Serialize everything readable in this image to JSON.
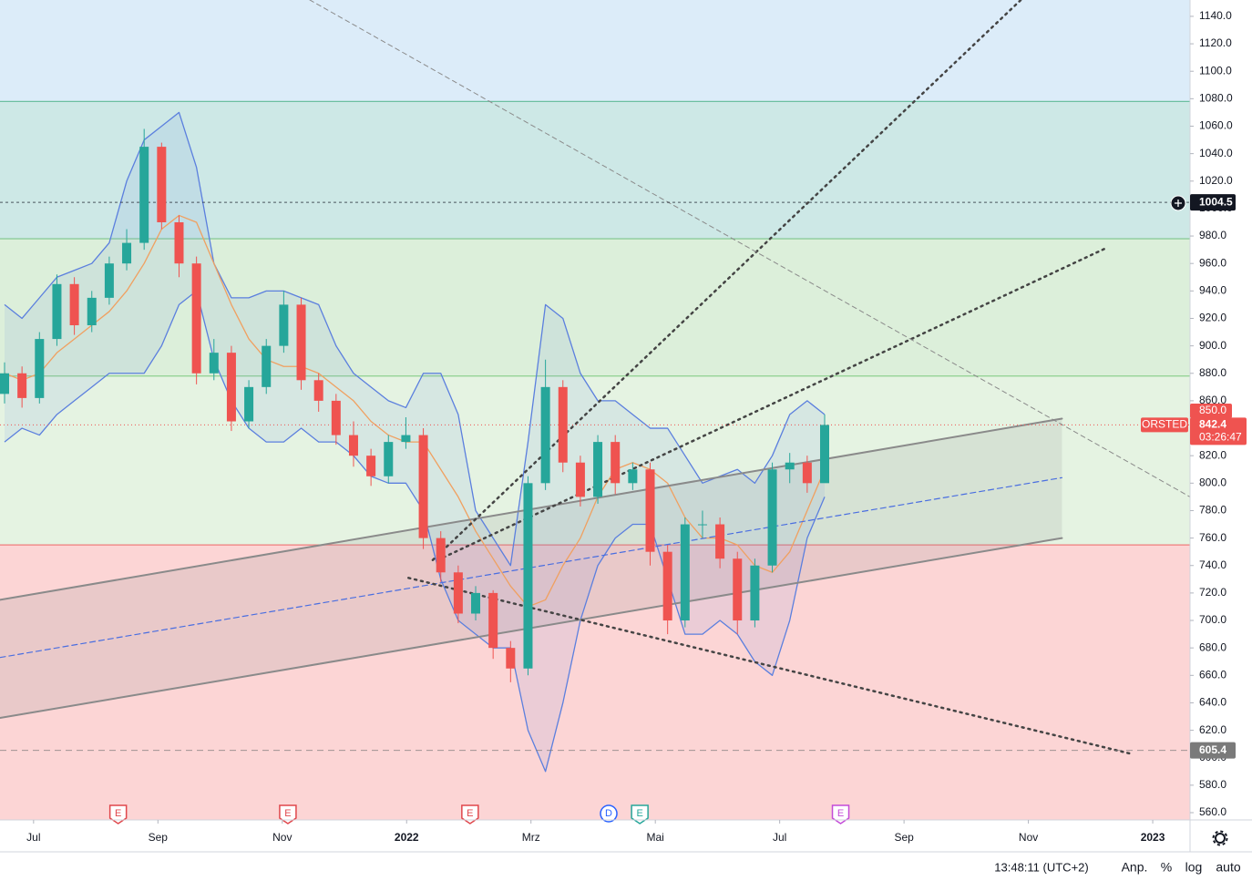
{
  "chart_data": {
    "type": "candlestick",
    "symbol": "ORSTED",
    "countdown": "03:26:47",
    "close_label": "842.4",
    "up_color": "#26a69a",
    "down_color": "#ef5350",
    "open": [
      865,
      880,
      862,
      905,
      945,
      915,
      935,
      960,
      975,
      1045,
      990,
      960,
      880,
      895,
      845,
      870,
      900,
      930,
      875,
      860,
      835,
      820,
      805,
      830,
      835,
      760,
      735,
      705,
      720,
      680,
      665,
      800,
      870,
      815,
      790,
      830,
      800,
      810,
      750,
      700,
      770,
      770,
      745,
      700,
      740,
      810,
      815,
      800
    ],
    "high": [
      888,
      885,
      910,
      952,
      950,
      940,
      965,
      985,
      1058,
      1048,
      995,
      965,
      905,
      900,
      875,
      905,
      940,
      935,
      880,
      865,
      845,
      825,
      835,
      848,
      840,
      765,
      740,
      725,
      722,
      685,
      805,
      890,
      875,
      820,
      835,
      835,
      815,
      815,
      755,
      775,
      780,
      775,
      750,
      745,
      815,
      822,
      820,
      850
    ],
    "low": [
      858,
      855,
      858,
      900,
      908,
      910,
      930,
      955,
      970,
      985,
      950,
      872,
      875,
      838,
      840,
      865,
      895,
      868,
      852,
      828,
      812,
      798,
      800,
      825,
      752,
      728,
      698,
      700,
      672,
      655,
      660,
      795,
      808,
      783,
      785,
      792,
      795,
      740,
      690,
      695,
      760,
      738,
      690,
      695,
      735,
      800,
      793,
      805
    ],
    "close": [
      880,
      862,
      905,
      945,
      915,
      935,
      960,
      975,
      1045,
      990,
      960,
      880,
      895,
      845,
      870,
      900,
      930,
      875,
      860,
      835,
      820,
      805,
      830,
      835,
      760,
      735,
      705,
      720,
      680,
      665,
      800,
      870,
      815,
      790,
      830,
      800,
      810,
      750,
      700,
      770,
      770,
      745,
      700,
      740,
      810,
      815,
      800,
      842.4
    ],
    "indicators": {
      "band_color": "#5b7fde",
      "basis_color": "#f0a060",
      "upper": [
        930,
        920,
        935,
        950,
        955,
        960,
        975,
        1020,
        1050,
        1060,
        1070,
        1030,
        960,
        935,
        935,
        940,
        940,
        935,
        930,
        900,
        880,
        870,
        860,
        855,
        880,
        880,
        850,
        780,
        760,
        740,
        830,
        930,
        920,
        880,
        860,
        860,
        850,
        840,
        840,
        820,
        800,
        805,
        810,
        800,
        820,
        850,
        860,
        850
      ],
      "basis": [
        880,
        875,
        880,
        895,
        905,
        915,
        925,
        940,
        960,
        985,
        995,
        990,
        960,
        930,
        905,
        890,
        885,
        885,
        880,
        870,
        860,
        845,
        835,
        830,
        830,
        810,
        790,
        765,
        745,
        725,
        710,
        715,
        740,
        760,
        790,
        810,
        815,
        810,
        800,
        775,
        760,
        760,
        755,
        740,
        735,
        750,
        780,
        810
      ],
      "lower": [
        830,
        840,
        835,
        850,
        860,
        870,
        880,
        880,
        880,
        900,
        930,
        940,
        890,
        860,
        840,
        830,
        830,
        840,
        830,
        830,
        820,
        805,
        800,
        800,
        780,
        730,
        700,
        690,
        680,
        680,
        620,
        590,
        640,
        700,
        740,
        760,
        770,
        770,
        730,
        690,
        690,
        700,
        690,
        670,
        660,
        700,
        760,
        790
      ]
    },
    "levels": [
      1078,
      978,
      878,
      755
    ],
    "level_colors": [
      "#6cbfa0",
      "#7cc58a",
      "#8fd08f",
      "#f07c7c"
    ],
    "zone_colors": [
      "#dcecf9",
      "#cde8e6",
      "#dcefda",
      "#e5f3e2",
      "#fcd5d5"
    ],
    "drawings": [
      {
        "style": "solid",
        "color": "#8a8a8a",
        "x": [
          -0.54,
          16.54
        ],
        "y": [
          715,
          847
        ]
      },
      {
        "style": "solid",
        "color": "#8a8a8a",
        "x": [
          -0.54,
          16.54
        ],
        "y": [
          629,
          760
        ]
      },
      {
        "style": "dashed",
        "color": "#4a6ee0",
        "x": [
          -0.54,
          16.54
        ],
        "y": [
          673,
          804
        ]
      },
      {
        "style": "dotted",
        "color": "#444444",
        "x": [
          6.42,
          15.88
        ],
        "y": [
          744,
          1152
        ]
      },
      {
        "style": "dotted",
        "color": "#444444",
        "x": [
          6.5,
          17.24
        ],
        "y": [
          744,
          971
        ]
      },
      {
        "style": "dotted",
        "color": "#444444",
        "x": [
          6.03,
          17.64
        ],
        "y": [
          731,
          603
        ]
      },
      {
        "style": "thin-dashed",
        "color": "#8a8a8a",
        "x": [
          4.44,
          18.6
        ],
        "y": [
          1152,
          790
        ]
      }
    ],
    "hlines": [
      {
        "value": 1004.5,
        "label": "1004.5",
        "color": "#131722"
      },
      {
        "value": 605.4,
        "label": "605.4",
        "color": "#7a7a7a"
      }
    ],
    "price_marker": {
      "value": 850,
      "label": "850.0"
    },
    "events": [
      {
        "label": "E",
        "x": 1.36,
        "color": "#e0474c"
      },
      {
        "label": "E",
        "x": 4.09,
        "color": "#e0474c"
      },
      {
        "label": "E",
        "x": 7.02,
        "color": "#e0474c"
      },
      {
        "label": "D",
        "x": 9.25,
        "color": "#2962ff"
      },
      {
        "label": "E",
        "x": 9.75,
        "color": "#26a69a"
      },
      {
        "label": "E",
        "x": 12.98,
        "color": "#c44bd8"
      }
    ],
    "ylim": [
      554.7,
      1151.9
    ],
    "xlim": [
      -0.54,
      18.6
    ],
    "yticks": [
      {
        "value": 560,
        "label": "560.0"
      },
      {
        "value": 580,
        "label": "580.0"
      },
      {
        "value": 600,
        "label": "600.0"
      },
      {
        "value": 620,
        "label": "620.0"
      },
      {
        "value": 640,
        "label": "640.0"
      },
      {
        "value": 660,
        "label": "660.0"
      },
      {
        "value": 680,
        "label": "680.0"
      },
      {
        "value": 700,
        "label": "700.0"
      },
      {
        "value": 720,
        "label": "720.0"
      },
      {
        "value": 740,
        "label": "740.0"
      },
      {
        "value": 760,
        "label": "760.0"
      },
      {
        "value": 780,
        "label": "780.0"
      },
      {
        "value": 800,
        "label": "800.0"
      },
      {
        "value": 820,
        "label": "820.0"
      },
      {
        "value": 840,
        "label": "840.0"
      },
      {
        "value": 860,
        "label": "860.0"
      },
      {
        "value": 880,
        "label": "880.0"
      },
      {
        "value": 900,
        "label": "900.0"
      },
      {
        "value": 920,
        "label": "920.0"
      },
      {
        "value": 940,
        "label": "940.0"
      },
      {
        "value": 960,
        "label": "960.0"
      },
      {
        "value": 980,
        "label": "980.0"
      },
      {
        "value": 1000,
        "label": "1000.0"
      },
      {
        "value": 1020,
        "label": "1020.0"
      },
      {
        "value": 1040,
        "label": "1040.0"
      },
      {
        "value": 1060,
        "label": "1060.0"
      },
      {
        "value": 1080,
        "label": "1080.0"
      },
      {
        "value": 1100,
        "label": "1100.0"
      },
      {
        "value": 1120,
        "label": "1120.0"
      },
      {
        "value": 1140,
        "label": "1140.0"
      }
    ],
    "xticks": [
      {
        "value": 0,
        "label": "Jul"
      },
      {
        "value": 2,
        "label": "Sep"
      },
      {
        "value": 4,
        "label": "Nov"
      },
      {
        "value": 6,
        "label": "2022"
      },
      {
        "value": 8,
        "label": "Mrz"
      },
      {
        "value": 10,
        "label": "Mai"
      },
      {
        "value": 12,
        "label": "Jul"
      },
      {
        "value": 14,
        "label": "Sep"
      },
      {
        "value": 16,
        "label": "Nov"
      },
      {
        "value": 18,
        "label": "2023"
      }
    ]
  },
  "footer": {
    "time": "13:48:11 (UTC+2)",
    "buttons": [
      "Anp.",
      "%",
      "log",
      "auto"
    ]
  }
}
